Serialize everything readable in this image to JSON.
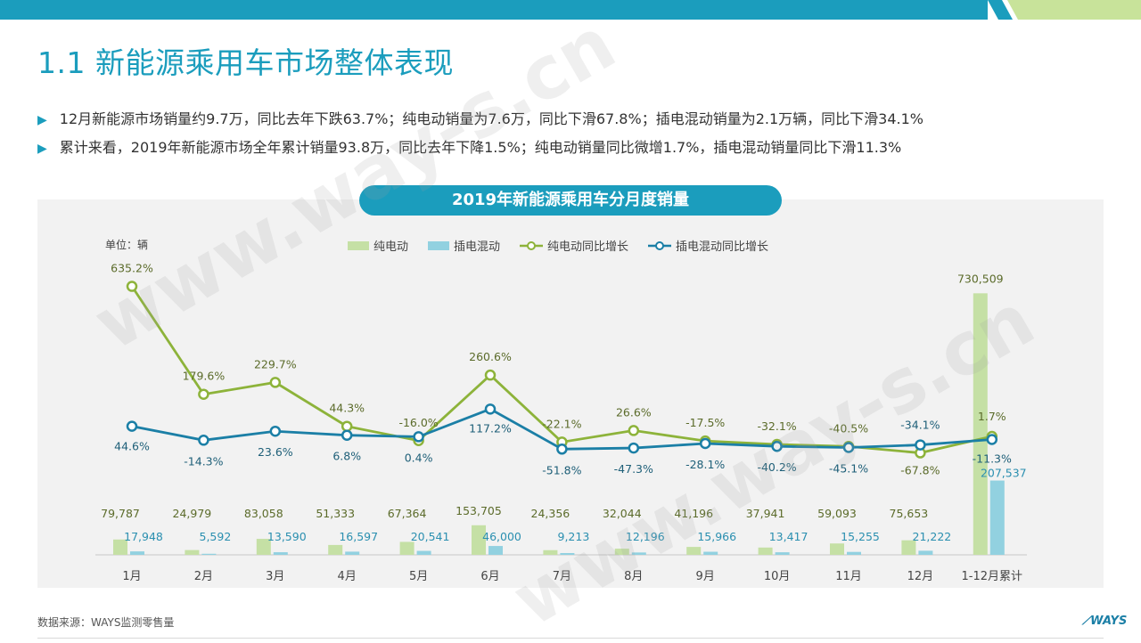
{
  "header": {
    "title": "1.1 新能源乘用车市场整体表现",
    "bullets": [
      "12月新能源市场销量约9.7万，同比去年下跌63.7%；纯电动销量为7.6万，同比下滑67.8%；插电混动销量为2.1万辆，同比下滑34.1%",
      "累计来看，2019年新能源市场全年累计销量93.8万，同比去年下降1.5%；纯电动销量同比微增1.7%，插电混动销量同比下滑11.3%"
    ]
  },
  "colors": {
    "accent": "#1b9dbd",
    "bev_bar": "#c5e0a5",
    "phev_bar": "#92d1e0",
    "bev_line": "#8db33a",
    "phev_line": "#1b7fa6",
    "lime": "#b7d96a"
  },
  "source": "数据来源：WAYS监测零售量",
  "logo": "WAYS",
  "watermark": "www.way-s.cn",
  "chart_data": {
    "type": "bar",
    "title": "2019年新能源乘用车分月度销量",
    "unit_label": "单位：辆",
    "categories": [
      "1月",
      "2月",
      "3月",
      "4月",
      "5月",
      "6月",
      "7月",
      "8月",
      "9月",
      "10月",
      "11月",
      "12月",
      "1-12月累计"
    ],
    "series": [
      {
        "name": "纯电动",
        "type": "bar",
        "values": [
          79787,
          24979,
          83058,
          51333,
          67364,
          153705,
          24356,
          32044,
          41196,
          37941,
          59093,
          75653,
          730509
        ],
        "labels": [
          "79,787",
          "24,979",
          "83,058",
          "51,333",
          "67,364",
          "153,705",
          "24,356",
          "32,044",
          "41,196",
          "37,941",
          "59,093",
          "75,653",
          "730,509"
        ]
      },
      {
        "name": "插电混动",
        "type": "bar",
        "values": [
          17948,
          5592,
          13590,
          16597,
          20541,
          46000,
          9213,
          12196,
          15966,
          13417,
          15255,
          21222,
          207537
        ],
        "labels": [
          "17,948",
          "5,592",
          "13,590",
          "16,597",
          "20,541",
          "46,000",
          "9,213",
          "12,196",
          "15,966",
          "13,417",
          "15,255",
          "21,222",
          "207,537"
        ]
      },
      {
        "name": "纯电动同比增长",
        "type": "line",
        "values": [
          635.2,
          179.6,
          229.7,
          44.3,
          -16.0,
          260.6,
          -22.1,
          26.6,
          -17.5,
          -32.1,
          -40.5,
          -67.8,
          1.7
        ],
        "labels": [
          "635.2%",
          "179.6%",
          "229.7%",
          "44.3%",
          "-16.0%",
          "260.6%",
          "-22.1%",
          "26.6%",
          "-17.5%",
          "-32.1%",
          "-40.5%",
          "-67.8%",
          "1.7%"
        ]
      },
      {
        "name": "插电混动同比增长",
        "type": "line",
        "values": [
          44.6,
          -14.3,
          23.6,
          6.8,
          0.4,
          117.2,
          -51.8,
          -47.3,
          -28.1,
          -40.2,
          -45.1,
          -34.1,
          -11.3
        ],
        "labels": [
          "44.6%",
          "-14.3%",
          "23.6%",
          "6.8%",
          "0.4%",
          "117.2%",
          "-51.8%",
          "-47.3%",
          "-28.1%",
          "-40.2%",
          "-45.1%",
          "-34.1%",
          "-11.3%"
        ]
      }
    ],
    "legend_position": "top",
    "grid": false
  }
}
